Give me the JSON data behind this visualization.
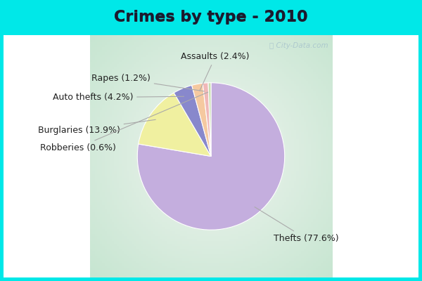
{
  "title": "Crimes by type - 2010",
  "slices": [
    {
      "label": "Thefts (77.6%)",
      "value": 77.6,
      "color": "#c4aede"
    },
    {
      "label": "Burglaries (13.9%)",
      "value": 13.9,
      "color": "#f0f0a0"
    },
    {
      "label": "Auto thefts (4.2%)",
      "value": 4.2,
      "color": "#8888cc"
    },
    {
      "label": "Assaults (2.4%)",
      "value": 2.4,
      "color": "#f5c9a0"
    },
    {
      "label": "Rapes (1.2%)",
      "value": 1.2,
      "color": "#f0b8b8"
    },
    {
      "label": "Robberies (0.6%)",
      "value": 0.6,
      "color": "#c8ddb0"
    }
  ],
  "bg_outer": "#00e8e8",
  "bg_inner_center": "#f5f5ff",
  "bg_inner_edge": "#c8e8d0",
  "title_fontsize": 16,
  "label_fontsize": 9,
  "startangle": 90
}
